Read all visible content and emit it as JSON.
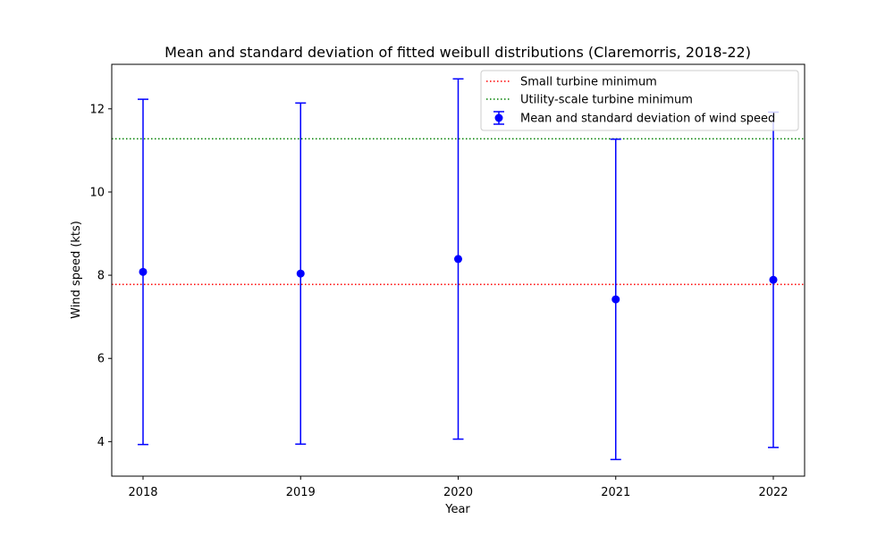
{
  "chart_data": {
    "type": "scatter",
    "title": "Mean and standard deviation of fitted weibull distributions (Claremorris, 2018-22)",
    "xlabel": "Year",
    "ylabel": "Wind speed (kts)",
    "categories": [
      "2018",
      "2019",
      "2020",
      "2021",
      "2022"
    ],
    "series": [
      {
        "name": "Mean and standard deviation of wind speed",
        "color": "#0000ff",
        "marker": "circle",
        "means": [
          8.08,
          8.04,
          8.39,
          7.42,
          7.89
        ],
        "std": [
          4.15,
          4.1,
          4.33,
          3.85,
          4.03
        ]
      }
    ],
    "reference_lines": [
      {
        "name": "Small turbine minimum",
        "value": 7.78,
        "color": "#ff0000",
        "style": "dotted"
      },
      {
        "name": "Utility-scale turbine minimum",
        "value": 11.28,
        "color": "#008000",
        "style": "dotted"
      }
    ],
    "ylim": [
      3.17,
      13.07
    ],
    "yticks": [
      4,
      6,
      8,
      10,
      12
    ],
    "grid": false,
    "legend_position": "top-right"
  }
}
